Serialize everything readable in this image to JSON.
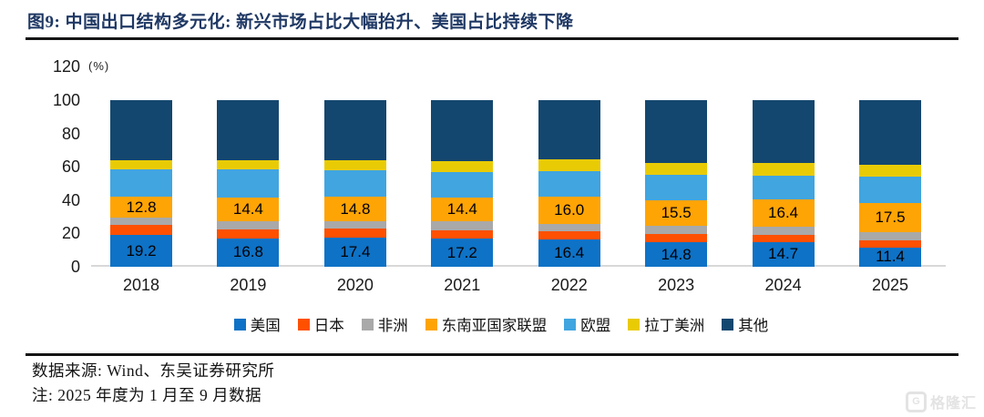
{
  "header": {
    "title": "图9:  中国出口结构多元化: 新兴市场占比大幅抬升、美国占比持续下降"
  },
  "chart_data": {
    "type": "bar",
    "stacked": true,
    "title": "中国出口结构多元化",
    "unit": "(%)",
    "ylim": [
      0,
      120
    ],
    "yticks": [
      0,
      20,
      40,
      60,
      80,
      100,
      120
    ],
    "grid": false,
    "legend_position": "bottom",
    "categories": [
      "2018",
      "2019",
      "2020",
      "2021",
      "2022",
      "2023",
      "2024",
      "2025"
    ],
    "series": [
      {
        "key": "us",
        "name": "美国",
        "color": "#0E72C6",
        "values": [
          19.2,
          16.8,
          17.4,
          17.2,
          16.4,
          14.8,
          14.7,
          11.4
        ],
        "value_labels": [
          "19.2",
          "16.8",
          "17.4",
          "17.2",
          "16.4",
          "14.8",
          "14.7",
          "11.4"
        ]
      },
      {
        "key": "japan",
        "name": "日本",
        "color": "#FF5000",
        "values": [
          5.9,
          5.7,
          5.5,
          4.9,
          4.8,
          4.7,
          4.3,
          4.3
        ]
      },
      {
        "key": "africa",
        "name": "非洲",
        "color": "#A9A9A9",
        "values": [
          4.2,
          4.6,
          4.4,
          5.1,
          4.7,
          5.1,
          5.0,
          5.3
        ]
      },
      {
        "key": "asean",
        "name": "东南亚国家联盟",
        "color": "#FFA405",
        "values": [
          12.8,
          14.4,
          14.8,
          14.4,
          16.0,
          15.5,
          16.4,
          17.5
        ],
        "value_labels": [
          "12.8",
          "14.4",
          "14.8",
          "14.4",
          "16.0",
          "15.5",
          "16.4",
          "17.5"
        ]
      },
      {
        "key": "eu",
        "name": "欧盟",
        "color": "#41A5DF",
        "values": [
          16.6,
          17.2,
          15.9,
          15.4,
          15.6,
          14.9,
          14.5,
          15.8
        ]
      },
      {
        "key": "latam",
        "name": "拉丁美洲",
        "color": "#E9CB05",
        "values": [
          5.4,
          5.3,
          5.9,
          6.3,
          7.0,
          7.4,
          7.6,
          6.7
        ]
      },
      {
        "key": "others",
        "name": "其他",
        "color": "#14476F",
        "values": [
          35.9,
          36.0,
          36.1,
          36.7,
          35.5,
          37.6,
          37.5,
          39.0
        ]
      }
    ]
  },
  "footer": {
    "source": "数据来源: Wind、东吴证券研究所",
    "note": "注: 2025 年度为 1 月至 9 月数据"
  },
  "watermark": {
    "logo_letter": "G",
    "text": "格隆汇"
  },
  "colors": {
    "title": "#1F3864",
    "rule": "#151515",
    "axis_line": "#D8D8D8",
    "watermark": "#E3E3E3"
  }
}
